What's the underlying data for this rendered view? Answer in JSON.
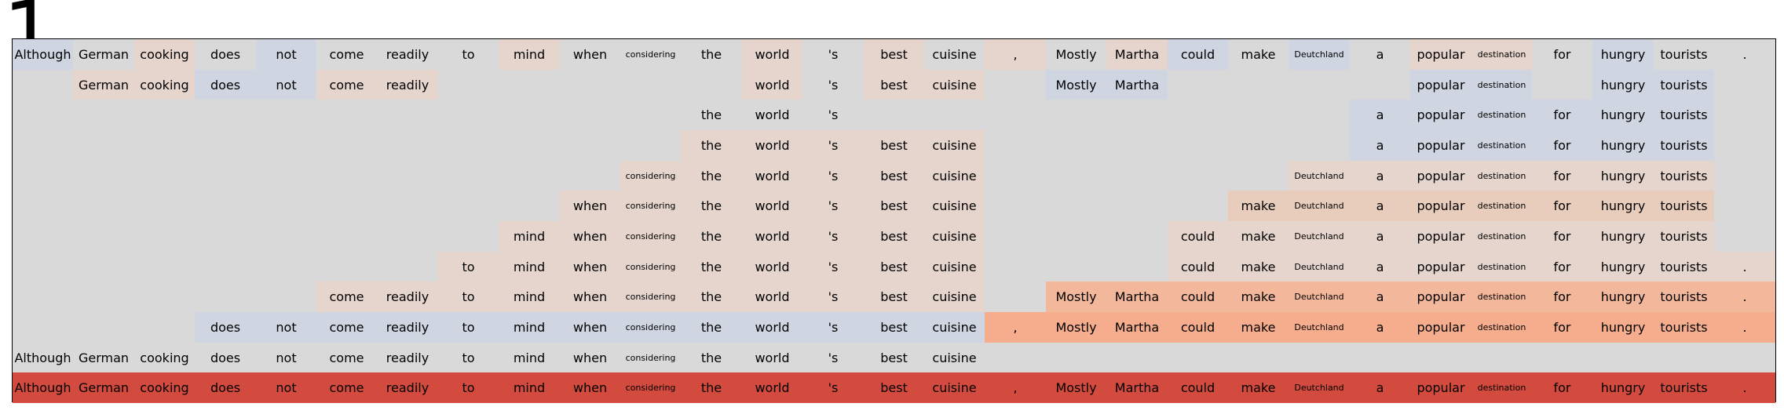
{
  "panel_label": "1",
  "tokens": [
    "Although",
    "German",
    "cooking",
    "does",
    "not",
    "come",
    "readily",
    "to",
    "mind",
    "when",
    "considering",
    "the",
    "world",
    "'s",
    "best",
    "cuisine",
    ",",
    "Mostly",
    "Martha",
    "could",
    "make",
    "Deutchland",
    "a",
    "popular",
    "destination",
    "for",
    "hungry",
    "tourists",
    "."
  ],
  "small_tokens": [
    "considering",
    "Deutchland",
    "destination"
  ],
  "colors": {
    "background": "#d9d9d9",
    "neutral": "#d9d9d9",
    "blue": "#cfd6e1",
    "pale_orange": "#e5d5cd",
    "light_orange": "#e8cdbc",
    "orange": "#f3b89c",
    "salmon": "#f5ad8e",
    "red": "#d24b3e"
  },
  "rows": [
    {
      "cells": [
        [
          "Although",
          "blue"
        ],
        [
          "German",
          "neutral"
        ],
        [
          "cooking",
          "pale_orange"
        ],
        [
          "does",
          "neutral"
        ],
        [
          "not",
          "blue"
        ],
        [
          "come",
          "neutral"
        ],
        [
          "readily",
          "neutral"
        ],
        [
          "to",
          "neutral"
        ],
        [
          "mind",
          "pale_orange"
        ],
        [
          "when",
          "neutral"
        ],
        [
          "considering",
          "neutral"
        ],
        [
          "the",
          "neutral"
        ],
        [
          "world",
          "pale_orange"
        ],
        [
          "'s",
          "neutral"
        ],
        [
          "best",
          "pale_orange"
        ],
        [
          "cuisine",
          "neutral"
        ],
        [
          ",",
          "pale_orange"
        ],
        [
          "Mostly",
          "neutral"
        ],
        [
          "Martha",
          "pale_orange"
        ],
        [
          "could",
          "blue"
        ],
        [
          "make",
          "neutral"
        ],
        [
          "Deutchland",
          "blue"
        ],
        [
          "a",
          "neutral"
        ],
        [
          "popular",
          "pale_orange"
        ],
        [
          "destination",
          "pale_orange"
        ],
        [
          "for",
          "neutral"
        ],
        [
          "hungry",
          "blue"
        ],
        [
          "tourists",
          "neutral"
        ],
        [
          ".",
          "neutral"
        ]
      ]
    },
    {
      "cells": [
        null,
        [
          "German",
          "pale_orange"
        ],
        [
          "cooking",
          "pale_orange"
        ],
        [
          "does",
          "blue"
        ],
        [
          "not",
          "blue"
        ],
        [
          "come",
          "pale_orange"
        ],
        [
          "readily",
          "pale_orange"
        ],
        null,
        null,
        null,
        null,
        null,
        [
          "world",
          "pale_orange"
        ],
        [
          "'s",
          "neutral"
        ],
        [
          "best",
          "pale_orange"
        ],
        [
          "cuisine",
          "pale_orange"
        ],
        null,
        [
          "Mostly",
          "blue"
        ],
        [
          "Martha",
          "blue"
        ],
        null,
        null,
        null,
        null,
        [
          "popular",
          "blue"
        ],
        [
          "destination",
          "blue"
        ],
        null,
        [
          "hungry",
          "blue"
        ],
        [
          "tourists",
          "blue"
        ],
        null
      ]
    },
    {
      "cells": [
        null,
        null,
        null,
        null,
        null,
        null,
        null,
        null,
        null,
        null,
        null,
        [
          "the",
          "neutral"
        ],
        [
          "world",
          "neutral"
        ],
        [
          "'s",
          "neutral"
        ],
        null,
        null,
        null,
        null,
        null,
        null,
        null,
        null,
        [
          "a",
          "blue"
        ],
        [
          "popular",
          "blue"
        ],
        [
          "destination",
          "blue"
        ],
        [
          "for",
          "blue"
        ],
        [
          "hungry",
          "blue"
        ],
        [
          "tourists",
          "blue"
        ],
        null
      ]
    },
    {
      "cells": [
        null,
        null,
        null,
        null,
        null,
        null,
        null,
        null,
        null,
        null,
        null,
        [
          "the",
          "pale_orange"
        ],
        [
          "world",
          "pale_orange"
        ],
        [
          "'s",
          "pale_orange"
        ],
        [
          "best",
          "pale_orange"
        ],
        [
          "cuisine",
          "pale_orange"
        ],
        null,
        null,
        null,
        null,
        null,
        null,
        [
          "a",
          "blue"
        ],
        [
          "popular",
          "blue"
        ],
        [
          "destination",
          "blue"
        ],
        [
          "for",
          "blue"
        ],
        [
          "hungry",
          "blue"
        ],
        [
          "tourists",
          "blue"
        ],
        null
      ]
    },
    {
      "cells": [
        null,
        null,
        null,
        null,
        null,
        null,
        null,
        null,
        null,
        null,
        [
          "considering",
          "pale_orange"
        ],
        [
          "the",
          "pale_orange"
        ],
        [
          "world",
          "pale_orange"
        ],
        [
          "'s",
          "pale_orange"
        ],
        [
          "best",
          "pale_orange"
        ],
        [
          "cuisine",
          "pale_orange"
        ],
        null,
        null,
        null,
        null,
        null,
        [
          "Deutchland",
          "pale_orange"
        ],
        [
          "a",
          "pale_orange"
        ],
        [
          "popular",
          "pale_orange"
        ],
        [
          "destination",
          "pale_orange"
        ],
        [
          "for",
          "pale_orange"
        ],
        [
          "hungry",
          "pale_orange"
        ],
        [
          "tourists",
          "pale_orange"
        ],
        null
      ]
    },
    {
      "cells": [
        null,
        null,
        null,
        null,
        null,
        null,
        null,
        null,
        null,
        [
          "when",
          "pale_orange"
        ],
        [
          "considering",
          "pale_orange"
        ],
        [
          "the",
          "pale_orange"
        ],
        [
          "world",
          "pale_orange"
        ],
        [
          "'s",
          "pale_orange"
        ],
        [
          "best",
          "pale_orange"
        ],
        [
          "cuisine",
          "pale_orange"
        ],
        null,
        null,
        null,
        null,
        [
          "make",
          "light_orange"
        ],
        [
          "Deutchland",
          "light_orange"
        ],
        [
          "a",
          "light_orange"
        ],
        [
          "popular",
          "light_orange"
        ],
        [
          "destination",
          "light_orange"
        ],
        [
          "for",
          "light_orange"
        ],
        [
          "hungry",
          "light_orange"
        ],
        [
          "tourists",
          "light_orange"
        ],
        null
      ]
    },
    {
      "cells": [
        null,
        null,
        null,
        null,
        null,
        null,
        null,
        null,
        [
          "mind",
          "pale_orange"
        ],
        [
          "when",
          "pale_orange"
        ],
        [
          "considering",
          "pale_orange"
        ],
        [
          "the",
          "pale_orange"
        ],
        [
          "world",
          "pale_orange"
        ],
        [
          "'s",
          "pale_orange"
        ],
        [
          "best",
          "pale_orange"
        ],
        [
          "cuisine",
          "pale_orange"
        ],
        null,
        null,
        null,
        [
          "could",
          "pale_orange"
        ],
        [
          "make",
          "pale_orange"
        ],
        [
          "Deutchland",
          "pale_orange"
        ],
        [
          "a",
          "pale_orange"
        ],
        [
          "popular",
          "pale_orange"
        ],
        [
          "destination",
          "pale_orange"
        ],
        [
          "for",
          "pale_orange"
        ],
        [
          "hungry",
          "pale_orange"
        ],
        [
          "tourists",
          "pale_orange"
        ],
        null
      ]
    },
    {
      "cells": [
        null,
        null,
        null,
        null,
        null,
        null,
        null,
        [
          "to",
          "pale_orange"
        ],
        [
          "mind",
          "pale_orange"
        ],
        [
          "when",
          "pale_orange"
        ],
        [
          "considering",
          "pale_orange"
        ],
        [
          "the",
          "pale_orange"
        ],
        [
          "world",
          "pale_orange"
        ],
        [
          "'s",
          "pale_orange"
        ],
        [
          "best",
          "pale_orange"
        ],
        [
          "cuisine",
          "pale_orange"
        ],
        null,
        null,
        null,
        [
          "could",
          "pale_orange"
        ],
        [
          "make",
          "pale_orange"
        ],
        [
          "Deutchland",
          "pale_orange"
        ],
        [
          "a",
          "pale_orange"
        ],
        [
          "popular",
          "pale_orange"
        ],
        [
          "destination",
          "pale_orange"
        ],
        [
          "for",
          "pale_orange"
        ],
        [
          "hungry",
          "pale_orange"
        ],
        [
          "tourists",
          "pale_orange"
        ],
        [
          ".",
          "pale_orange"
        ]
      ]
    },
    {
      "cells": [
        null,
        null,
        null,
        null,
        null,
        [
          "come",
          "pale_orange"
        ],
        [
          "readily",
          "pale_orange"
        ],
        [
          "to",
          "pale_orange"
        ],
        [
          "mind",
          "pale_orange"
        ],
        [
          "when",
          "pale_orange"
        ],
        [
          "considering",
          "pale_orange"
        ],
        [
          "the",
          "pale_orange"
        ],
        [
          "world",
          "pale_orange"
        ],
        [
          "'s",
          "pale_orange"
        ],
        [
          "best",
          "pale_orange"
        ],
        [
          "cuisine",
          "pale_orange"
        ],
        null,
        [
          "Mostly",
          "orange"
        ],
        [
          "Martha",
          "orange"
        ],
        [
          "could",
          "orange"
        ],
        [
          "make",
          "orange"
        ],
        [
          "Deutchland",
          "orange"
        ],
        [
          "a",
          "orange"
        ],
        [
          "popular",
          "orange"
        ],
        [
          "destination",
          "orange"
        ],
        [
          "for",
          "orange"
        ],
        [
          "hungry",
          "orange"
        ],
        [
          "tourists",
          "orange"
        ],
        [
          ".",
          "orange"
        ]
      ]
    },
    {
      "cells": [
        null,
        null,
        null,
        [
          "does",
          "blue"
        ],
        [
          "not",
          "blue"
        ],
        [
          "come",
          "blue"
        ],
        [
          "readily",
          "blue"
        ],
        [
          "to",
          "blue"
        ],
        [
          "mind",
          "blue"
        ],
        [
          "when",
          "blue"
        ],
        [
          "considering",
          "blue"
        ],
        [
          "the",
          "blue"
        ],
        [
          "world",
          "blue"
        ],
        [
          "'s",
          "blue"
        ],
        [
          "best",
          "blue"
        ],
        [
          "cuisine",
          "blue"
        ],
        [
          ",",
          "salmon"
        ],
        [
          "Mostly",
          "salmon"
        ],
        [
          "Martha",
          "salmon"
        ],
        [
          "could",
          "salmon"
        ],
        [
          "make",
          "salmon"
        ],
        [
          "Deutchland",
          "salmon"
        ],
        [
          "a",
          "salmon"
        ],
        [
          "popular",
          "salmon"
        ],
        [
          "destination",
          "salmon"
        ],
        [
          "for",
          "salmon"
        ],
        [
          "hungry",
          "salmon"
        ],
        [
          "tourists",
          "salmon"
        ],
        [
          ".",
          "salmon"
        ]
      ]
    },
    {
      "cells": [
        [
          "Although",
          "neutral"
        ],
        [
          "German",
          "neutral"
        ],
        [
          "cooking",
          "neutral"
        ],
        [
          "does",
          "neutral"
        ],
        [
          "not",
          "neutral"
        ],
        [
          "come",
          "neutral"
        ],
        [
          "readily",
          "neutral"
        ],
        [
          "to",
          "neutral"
        ],
        [
          "mind",
          "neutral"
        ],
        [
          "when",
          "neutral"
        ],
        [
          "considering",
          "neutral"
        ],
        [
          "the",
          "neutral"
        ],
        [
          "world",
          "neutral"
        ],
        [
          "'s",
          "neutral"
        ],
        [
          "best",
          "neutral"
        ],
        [
          "cuisine",
          "neutral"
        ],
        null,
        null,
        null,
        null,
        null,
        null,
        null,
        null,
        null,
        null,
        null,
        null,
        null
      ]
    },
    {
      "cells": [
        [
          "Although",
          "red"
        ],
        [
          "German",
          "red"
        ],
        [
          "cooking",
          "red"
        ],
        [
          "does",
          "red"
        ],
        [
          "not",
          "red"
        ],
        [
          "come",
          "red"
        ],
        [
          "readily",
          "red"
        ],
        [
          "to",
          "red"
        ],
        [
          "mind",
          "red"
        ],
        [
          "when",
          "red"
        ],
        [
          "considering",
          "red"
        ],
        [
          "the",
          "red"
        ],
        [
          "world",
          "red"
        ],
        [
          "'s",
          "red"
        ],
        [
          "best",
          "red"
        ],
        [
          "cuisine",
          "red"
        ],
        [
          ",",
          "red"
        ],
        [
          "Mostly",
          "red"
        ],
        [
          "Martha",
          "red"
        ],
        [
          "could",
          "red"
        ],
        [
          "make",
          "red"
        ],
        [
          "Deutchland",
          "red"
        ],
        [
          "a",
          "red"
        ],
        [
          "popular",
          "red"
        ],
        [
          "destination",
          "red"
        ],
        [
          "for",
          "red"
        ],
        [
          "hungry",
          "red"
        ],
        [
          "tourists",
          "red"
        ],
        [
          ".",
          "red"
        ]
      ]
    }
  ]
}
